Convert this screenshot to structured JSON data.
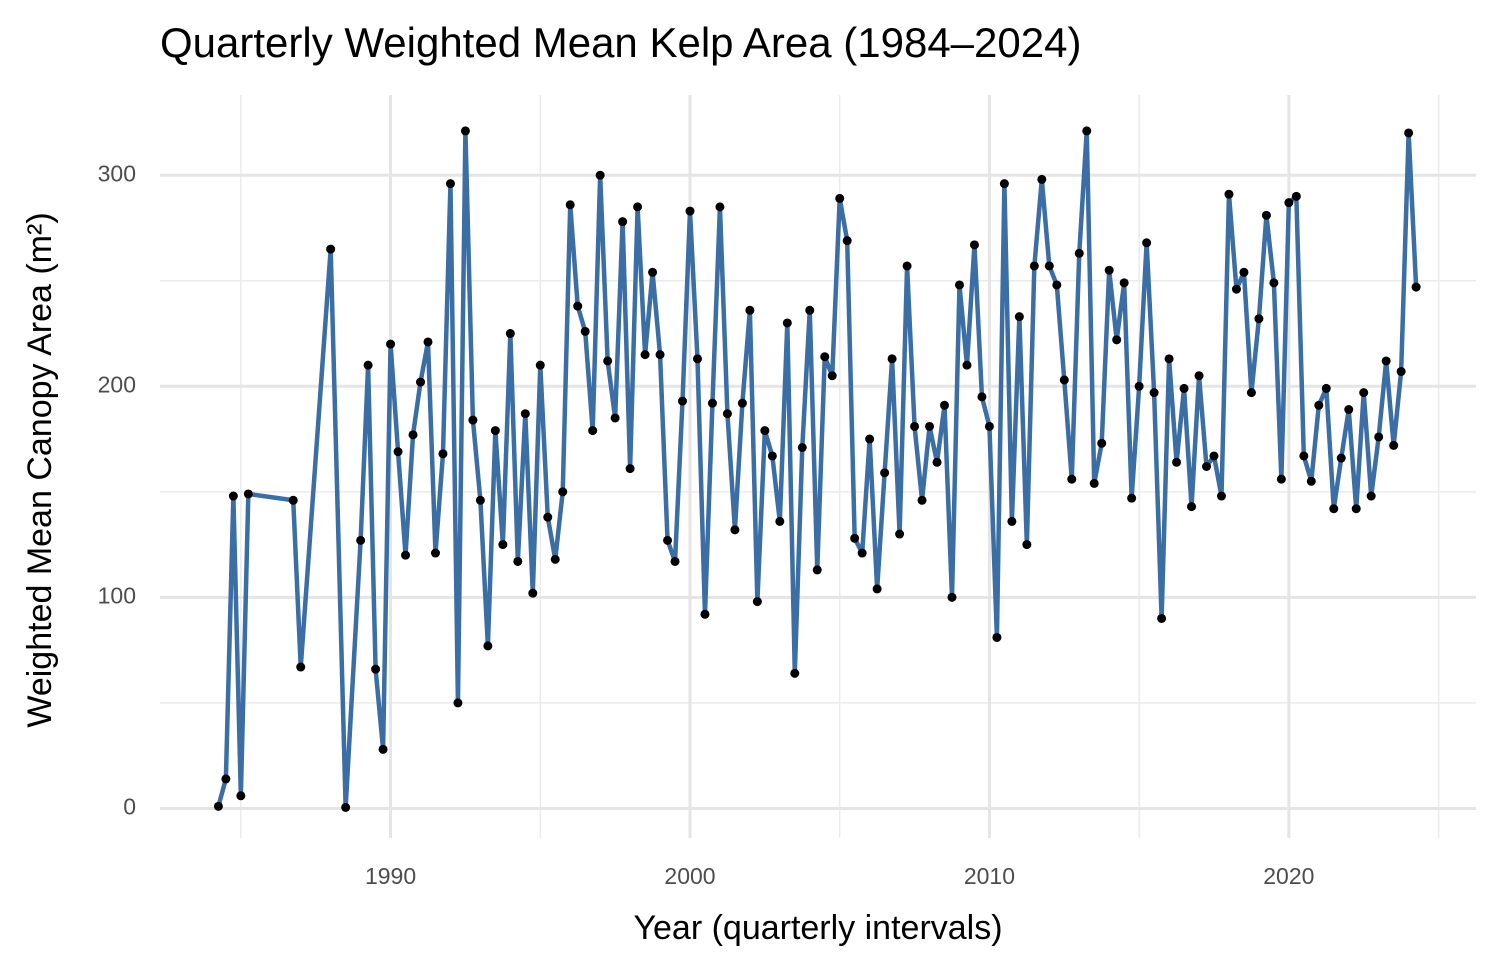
{
  "chart_data": {
    "type": "line",
    "title": "Quarterly Weighted Mean Kelp Area (1984–2024)",
    "x_label": "Year (quarterly intervals)",
    "y_label": "Weighted Mean Canopy Area (m²)",
    "color": "#3a6ea5",
    "point_color": "#000000",
    "xlim": [
      1982.3,
      2026.25
    ],
    "ylim": [
      -14,
      338
    ],
    "xticks": [
      1990,
      2000,
      2010,
      2020
    ],
    "x_minor_ticks": [
      1985,
      1995,
      2005,
      2015,
      2025
    ],
    "yticks": [
      0,
      100,
      200,
      300
    ],
    "y_minor_ticks": [
      50,
      150,
      250
    ],
    "grid": true,
    "x": [
      1984.25,
      1984.5,
      1984.75,
      1985,
      1985.25,
      1986.75,
      1987,
      1988,
      1988.5,
      1989,
      1989.25,
      1989.5,
      1989.75,
      1990,
      1990.25,
      1990.5,
      1990.75,
      1991,
      1991.25,
      1991.5,
      1991.75,
      1992,
      1992.25,
      1992.5,
      1992.75,
      1993,
      1993.25,
      1993.5,
      1993.75,
      1994,
      1994.25,
      1994.5,
      1994.75,
      1995,
      1995.25,
      1995.5,
      1995.75,
      1996,
      1996.25,
      1996.5,
      1996.75,
      1997,
      1997.25,
      1997.5,
      1997.75,
      1998,
      1998.25,
      1998.5,
      1998.75,
      1999,
      1999.25,
      1999.5,
      1999.75,
      2000,
      2000.25,
      2000.5,
      2000.75,
      2001,
      2001.25,
      2001.5,
      2001.75,
      2002,
      2002.25,
      2002.5,
      2002.75,
      2003,
      2003.25,
      2003.5,
      2003.75,
      2004,
      2004.25,
      2004.5,
      2004.75,
      2005,
      2005.25,
      2005.5,
      2005.75,
      2006,
      2006.25,
      2006.5,
      2006.75,
      2007,
      2007.25,
      2007.5,
      2007.75,
      2008,
      2008.25,
      2008.5,
      2008.75,
      2009,
      2009.25,
      2009.5,
      2009.75,
      2010,
      2010.25,
      2010.5,
      2010.75,
      2011,
      2011.25,
      2011.5,
      2011.75,
      2012,
      2012.25,
      2012.5,
      2012.75,
      2013,
      2013.25,
      2013.5,
      2013.75,
      2014,
      2014.25,
      2014.5,
      2014.75,
      2015,
      2015.25,
      2015.5,
      2015.75,
      2016,
      2016.25,
      2016.5,
      2016.75,
      2017,
      2017.25,
      2017.5,
      2017.75,
      2018,
      2018.25,
      2018.5,
      2018.75,
      2019,
      2019.25,
      2019.5,
      2019.75,
      2020,
      2020.25,
      2020.5,
      2020.75,
      2021,
      2021.25,
      2021.5,
      2021.75,
      2022,
      2022.25,
      2022.5,
      2022.75,
      2023,
      2023.25,
      2023.5,
      2023.75,
      2024,
      2024.25
    ],
    "values": [
      1,
      14,
      148,
      6,
      149,
      146,
      67,
      265,
      0.5,
      127,
      210,
      66,
      28,
      220,
      169,
      120,
      177,
      202,
      221,
      121,
      168,
      296,
      50,
      321,
      184,
      146,
      77,
      179,
      125,
      225,
      117,
      187,
      102,
      210,
      138,
      118,
      150,
      286,
      238,
      226,
      179,
      300,
      212,
      185,
      278,
      161,
      285,
      215,
      254,
      215,
      127,
      117,
      193,
      283,
      213,
      92,
      192,
      285,
      187,
      132,
      192,
      236,
      98,
      179,
      167,
      136,
      230,
      64,
      171,
      236,
      113,
      214,
      205,
      289,
      269,
      128,
      121,
      175,
      104,
      159,
      213,
      130,
      257,
      181,
      146,
      181,
      164,
      191,
      100,
      248,
      210,
      267,
      195,
      181,
      81,
      296,
      136,
      233,
      125,
      257,
      298,
      257,
      248,
      203,
      156,
      263,
      321,
      154,
      173,
      255,
      222,
      249,
      147,
      200,
      268,
      197,
      90,
      213,
      164,
      199,
      143,
      205,
      162,
      167,
      148,
      291,
      246,
      254,
      197,
      232,
      281,
      249,
      156,
      287,
      290,
      167,
      155,
      191,
      199,
      142,
      166,
      189,
      142,
      197,
      148,
      176,
      212,
      172,
      207,
      320,
      247
    ]
  }
}
